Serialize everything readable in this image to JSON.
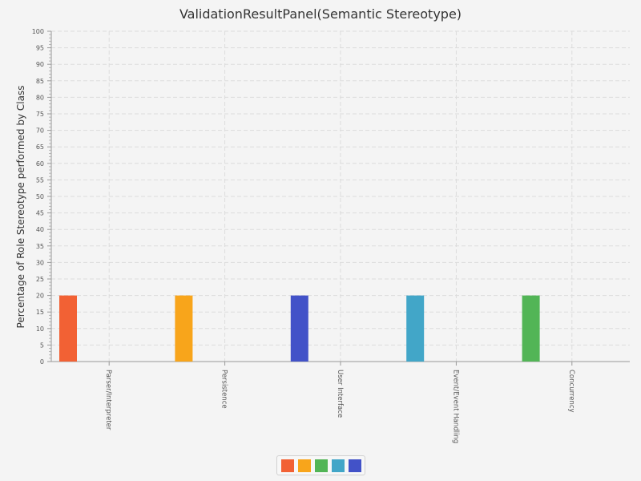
{
  "chart_data": {
    "type": "bar",
    "title": "ValidationResultPanel(Semantic Stereotype)",
    "xlabel": "",
    "ylabel": "Percentage of Role Stereotype performed by Class",
    "ylim": [
      0,
      100
    ],
    "ytick_step": 5,
    "minor_ticks_per_major": 4,
    "grid": true,
    "categories": [
      "Parser/Interpreter",
      "Persistence",
      "User Interface",
      "Event/Event Handling",
      "Concurrency"
    ],
    "values": [
      20,
      20,
      20,
      20,
      20
    ],
    "bar_colors": [
      "#f26134",
      "#f8a51b",
      "#4252c8",
      "#42a6c8",
      "#52b556"
    ],
    "legend": {
      "placement": "bottom-center",
      "colors": [
        "#f26134",
        "#f8a51b",
        "#52b556",
        "#42a6c8",
        "#4252c8"
      ]
    }
  }
}
